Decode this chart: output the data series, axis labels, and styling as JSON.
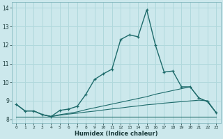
{
  "xlabel": "Humidex (Indice chaleur)",
  "background_color": "#cce8ec",
  "grid_color": "#b0d8dc",
  "line_color": "#1e6b6b",
  "xlim": [
    -0.5,
    23.5
  ],
  "ylim": [
    7.8,
    14.3
  ],
  "yticks": [
    8,
    9,
    10,
    11,
    12,
    13,
    14
  ],
  "xticks": [
    0,
    1,
    2,
    3,
    4,
    5,
    6,
    7,
    8,
    9,
    10,
    11,
    12,
    13,
    14,
    15,
    16,
    17,
    18,
    19,
    20,
    21,
    22,
    23
  ],
  "series": [
    {
      "x": [
        0,
        1,
        2,
        3,
        4,
        5,
        6,
        7,
        8,
        9,
        10,
        11,
        12,
        13,
        14,
        15,
        16,
        17,
        18,
        19,
        20,
        21,
        22,
        23
      ],
      "y": [
        8.8,
        8.45,
        8.45,
        8.25,
        8.15,
        8.48,
        8.55,
        8.7,
        9.35,
        10.15,
        10.45,
        10.7,
        12.3,
        12.55,
        12.45,
        13.9,
        12.0,
        10.55,
        10.6,
        9.75,
        9.75,
        9.15,
        8.95,
        8.35
      ],
      "has_markers": true,
      "linewidth": 1.0
    },
    {
      "x": [
        0,
        1,
        2,
        3,
        4,
        5,
        6,
        7,
        8,
        9,
        10,
        11,
        12,
        13,
        14,
        15,
        16,
        17,
        18,
        19,
        20,
        21,
        22,
        23
      ],
      "y": [
        8.8,
        8.45,
        8.45,
        8.25,
        8.15,
        8.25,
        8.32,
        8.4,
        8.52,
        8.62,
        8.72,
        8.82,
        8.92,
        9.02,
        9.12,
        9.22,
        9.35,
        9.45,
        9.55,
        9.65,
        9.75,
        9.15,
        8.95,
        8.35
      ],
      "has_markers": false,
      "linewidth": 0.8
    },
    {
      "x": [
        0,
        1,
        2,
        3,
        4,
        5,
        6,
        7,
        8,
        9,
        10,
        11,
        12,
        13,
        14,
        15,
        16,
        17,
        18,
        19,
        20,
        21,
        22,
        23
      ],
      "y": [
        8.8,
        8.45,
        8.45,
        8.25,
        8.15,
        8.22,
        8.28,
        8.33,
        8.39,
        8.44,
        8.5,
        8.56,
        8.61,
        8.67,
        8.72,
        8.78,
        8.82,
        8.87,
        8.91,
        8.95,
        8.99,
        9.03,
        9.0,
        8.35
      ],
      "has_markers": false,
      "linewidth": 0.8
    },
    {
      "x": [
        0,
        23
      ],
      "y": [
        8.15,
        8.15
      ],
      "has_markers": false,
      "linewidth": 0.8
    }
  ]
}
